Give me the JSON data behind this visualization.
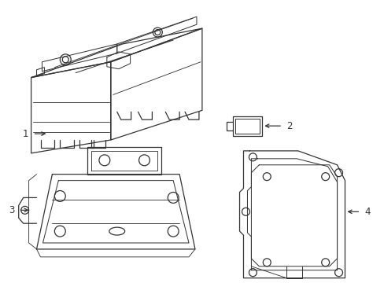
{
  "background_color": "#ffffff",
  "line_color": "#333333",
  "line_width": 0.9,
  "label_fontsize": 8.5,
  "fig_width": 4.89,
  "fig_height": 3.6,
  "dpi": 100
}
